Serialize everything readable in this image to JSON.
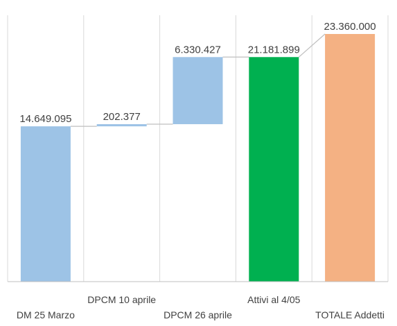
{
  "chart_data": {
    "type": "bar",
    "subtype": "waterfall",
    "categories": [
      "DM 25 Marzo",
      "DPCM  10 aprile",
      "DPCM 26 aprile",
      "Attivi al 4/05",
      "TOTALE Addetti"
    ],
    "label_rows": [
      "bottom",
      "top",
      "bottom",
      "top",
      "bottom"
    ],
    "values": [
      14649095,
      202377,
      6330427,
      21181899,
      23360000
    ],
    "data_labels": [
      "14.649.095",
      "202.377",
      "6.330.427",
      "21.181.899",
      "23.360.000"
    ],
    "bar_kind": [
      "increase",
      "increase",
      "increase",
      "total",
      "total"
    ],
    "colors": {
      "increase": "#9dc3e6",
      "active_total": "#00b050",
      "final_total": "#f4b183",
      "connector": "#bfbfbf",
      "gridline": "#d9d9d9",
      "axis": "#bfbfbf",
      "text": "#404040"
    },
    "bar_colors": [
      "#9dc3e6",
      "#9dc3e6",
      "#9dc3e6",
      "#00b050",
      "#f4b183"
    ],
    "ylim": [
      0,
      24500000
    ],
    "grid": true,
    "title": "",
    "xlabel": "",
    "ylabel": ""
  }
}
